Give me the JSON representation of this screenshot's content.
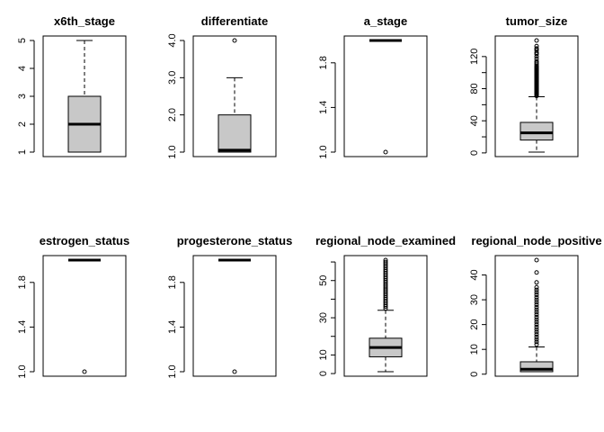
{
  "chart_data": [
    {
      "type": "boxplot",
      "title": "x6th_stage",
      "ylim": [
        1,
        5
      ],
      "yticks": [
        1,
        2,
        3,
        4,
        5
      ],
      "tick_labels": [
        "1",
        "2",
        "3",
        "4",
        "5"
      ],
      "whisker_low": 1,
      "q1": 1,
      "median": 2,
      "q3": 3,
      "whisker_high": 5,
      "outliers": []
    },
    {
      "type": "boxplot",
      "title": "differentiate",
      "ylim": [
        1,
        4
      ],
      "yticks": [
        1,
        2,
        3,
        4
      ],
      "tick_labels": [
        "1.0",
        "2.0",
        "3.0",
        "4.0"
      ],
      "whisker_low": 1,
      "q1": 1,
      "median": 1.05,
      "q3": 2,
      "whisker_high": 3,
      "outliers": [
        4
      ]
    },
    {
      "type": "boxplot",
      "title": "a_stage",
      "ylim": [
        1,
        2
      ],
      "yticks": [
        1.0,
        1.4,
        1.8
      ],
      "tick_labels": [
        "1.0",
        "1.4",
        "1.8"
      ],
      "whisker_low": 2,
      "q1": 2,
      "median": 2,
      "q3": 2,
      "whisker_high": 2,
      "outliers": [
        1
      ]
    },
    {
      "type": "boxplot",
      "title": "tumor_size",
      "ylim": [
        1,
        140
      ],
      "yticks": [
        0,
        20,
        40,
        60,
        80,
        100,
        120
      ],
      "tick_labels": [
        "0",
        "",
        "40",
        "",
        "80",
        "",
        "120"
      ],
      "whisker_low": 1,
      "q1": 16,
      "median": 25,
      "q3": 38,
      "whisker_high": 70,
      "outliers": [
        71,
        72,
        73,
        74,
        75,
        76,
        77,
        78,
        79,
        80,
        81,
        82,
        83,
        84,
        85,
        86,
        87,
        88,
        89,
        90,
        91,
        92,
        93,
        94,
        95,
        96,
        97,
        98,
        99,
        100,
        101,
        102,
        103,
        104,
        105,
        106,
        107,
        108,
        110,
        112,
        114,
        117,
        120,
        123,
        125,
        128,
        130,
        133,
        140
      ]
    },
    {
      "type": "boxplot",
      "title": "estrogen_status",
      "ylim": [
        1,
        2
      ],
      "yticks": [
        1.0,
        1.4,
        1.8
      ],
      "tick_labels": [
        "1.0",
        "1.4",
        "1.8"
      ],
      "whisker_low": 2,
      "q1": 2,
      "median": 2,
      "q3": 2,
      "whisker_high": 2,
      "outliers": [
        1
      ]
    },
    {
      "type": "boxplot",
      "title": "progesterone_status",
      "ylim": [
        1,
        2
      ],
      "yticks": [
        1.0,
        1.4,
        1.8
      ],
      "tick_labels": [
        "1.0",
        "1.4",
        "1.8"
      ],
      "whisker_low": 2,
      "q1": 2,
      "median": 2,
      "q3": 2,
      "whisker_high": 2,
      "outliers": [
        1
      ]
    },
    {
      "type": "boxplot",
      "title": "regional_node_examined",
      "ylim": [
        1,
        61
      ],
      "yticks": [
        0,
        10,
        20,
        30,
        40,
        50,
        60
      ],
      "tick_labels": [
        "0",
        "10",
        "",
        "30",
        "",
        "50",
        ""
      ],
      "whisker_low": 1,
      "q1": 9,
      "median": 14,
      "q3": 19,
      "whisker_high": 34,
      "outliers": [
        35,
        36,
        37,
        38,
        39,
        40,
        41,
        42,
        43,
        44,
        45,
        46,
        47,
        48,
        49,
        50,
        51,
        52,
        53,
        54,
        55,
        56,
        57,
        58,
        59,
        60,
        61
      ]
    },
    {
      "type": "boxplot",
      "title": "regional_node_positive",
      "ylim": [
        1,
        46
      ],
      "yticks": [
        0,
        10,
        20,
        30,
        40
      ],
      "tick_labels": [
        "0",
        "10",
        "20",
        "30",
        "40"
      ],
      "whisker_low": 1,
      "q1": 1,
      "median": 2,
      "q3": 5,
      "whisker_high": 11,
      "outliers": [
        12,
        13,
        14,
        15,
        16,
        17,
        18,
        19,
        20,
        21,
        22,
        23,
        24,
        25,
        26,
        27,
        28,
        29,
        30,
        31,
        32,
        33,
        34,
        35,
        37,
        41,
        46
      ]
    }
  ]
}
